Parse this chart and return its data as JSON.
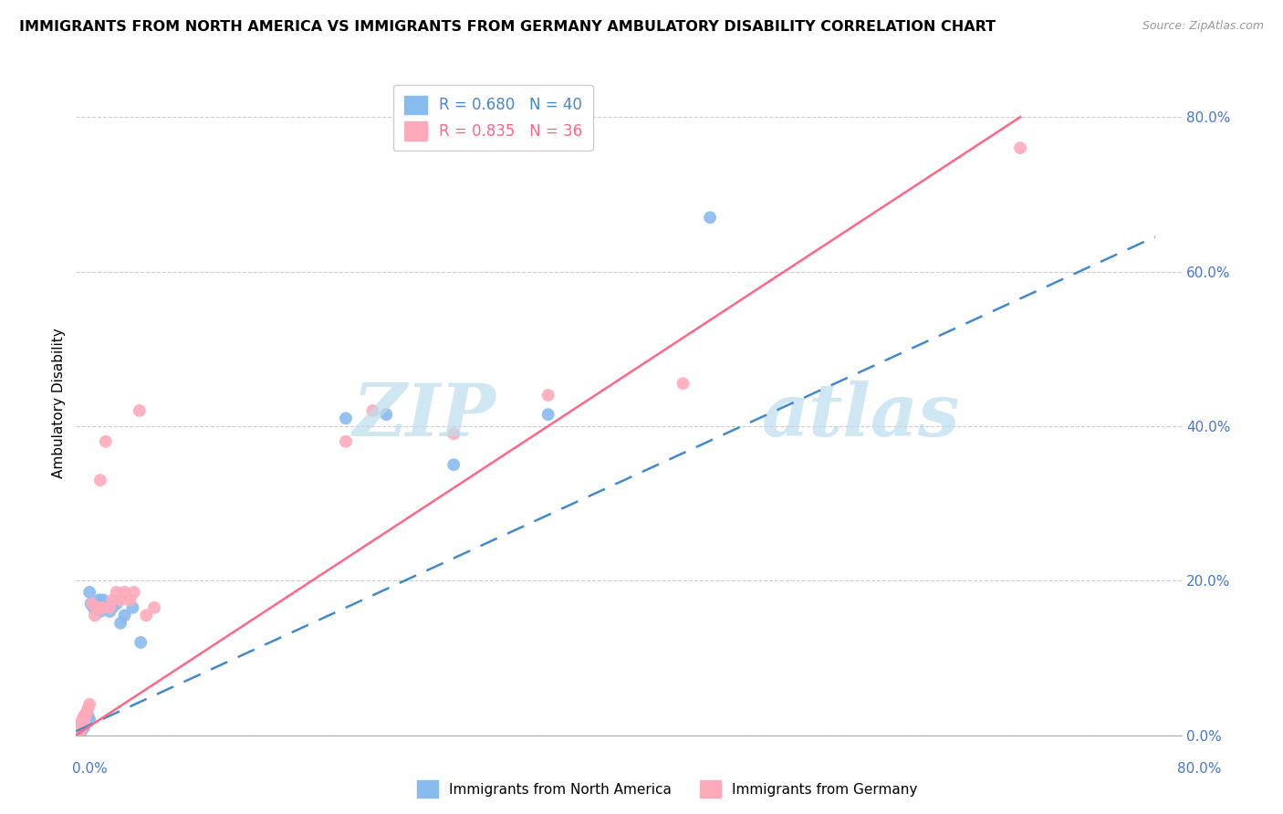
{
  "title": "IMMIGRANTS FROM NORTH AMERICA VS IMMIGRANTS FROM GERMANY AMBULATORY DISABILITY CORRELATION CHART",
  "source": "Source: ZipAtlas.com",
  "ylabel": "Ambulatory Disability",
  "right_ytick_vals": [
    0.0,
    0.2,
    0.4,
    0.6,
    0.8
  ],
  "R_blue": 0.68,
  "N_blue": 40,
  "R_pink": 0.835,
  "N_pink": 36,
  "color_blue": "#88BBEE",
  "color_pink": "#FFAABB",
  "color_line_blue": "#4488CC",
  "color_line_pink": "#FF6688",
  "color_axis_labels": "#4477CC",
  "watermark_color": "#BBDDEE",
  "scatter_blue_x": [
    0.001,
    0.002,
    0.002,
    0.003,
    0.003,
    0.004,
    0.004,
    0.005,
    0.005,
    0.005,
    0.006,
    0.006,
    0.006,
    0.007,
    0.007,
    0.008,
    0.008,
    0.009,
    0.009,
    0.01,
    0.01,
    0.011,
    0.013,
    0.015,
    0.017,
    0.018,
    0.02,
    0.022,
    0.025,
    0.027,
    0.03,
    0.033,
    0.036,
    0.042,
    0.048,
    0.2,
    0.23,
    0.28,
    0.35,
    0.47
  ],
  "scatter_blue_y": [
    0.005,
    0.005,
    0.01,
    0.005,
    0.01,
    0.005,
    0.01,
    0.01,
    0.015,
    0.02,
    0.01,
    0.015,
    0.02,
    0.015,
    0.02,
    0.02,
    0.025,
    0.02,
    0.025,
    0.02,
    0.185,
    0.17,
    0.165,
    0.17,
    0.175,
    0.16,
    0.175,
    0.17,
    0.16,
    0.165,
    0.17,
    0.145,
    0.155,
    0.165,
    0.12,
    0.41,
    0.415,
    0.35,
    0.415,
    0.67
  ],
  "scatter_pink_x": [
    0.001,
    0.002,
    0.003,
    0.003,
    0.004,
    0.004,
    0.005,
    0.005,
    0.006,
    0.006,
    0.007,
    0.008,
    0.009,
    0.01,
    0.012,
    0.014,
    0.016,
    0.018,
    0.02,
    0.022,
    0.025,
    0.027,
    0.03,
    0.033,
    0.036,
    0.04,
    0.043,
    0.047,
    0.052,
    0.058,
    0.2,
    0.22,
    0.28,
    0.35,
    0.45,
    0.7
  ],
  "scatter_pink_y": [
    0.005,
    0.01,
    0.005,
    0.015,
    0.01,
    0.015,
    0.015,
    0.02,
    0.02,
    0.025,
    0.025,
    0.03,
    0.035,
    0.04,
    0.17,
    0.155,
    0.165,
    0.33,
    0.165,
    0.38,
    0.165,
    0.175,
    0.185,
    0.175,
    0.185,
    0.175,
    0.185,
    0.42,
    0.155,
    0.165,
    0.38,
    0.42,
    0.39,
    0.44,
    0.455,
    0.76
  ],
  "xlim": [
    0.0,
    0.82
  ],
  "ylim": [
    0.0,
    0.86
  ],
  "blue_line_x": [
    0.0,
    0.8
  ],
  "blue_line_y": [
    0.005,
    0.645
  ],
  "pink_line_x": [
    0.0,
    0.7
  ],
  "pink_line_y": [
    0.0,
    0.8
  ]
}
